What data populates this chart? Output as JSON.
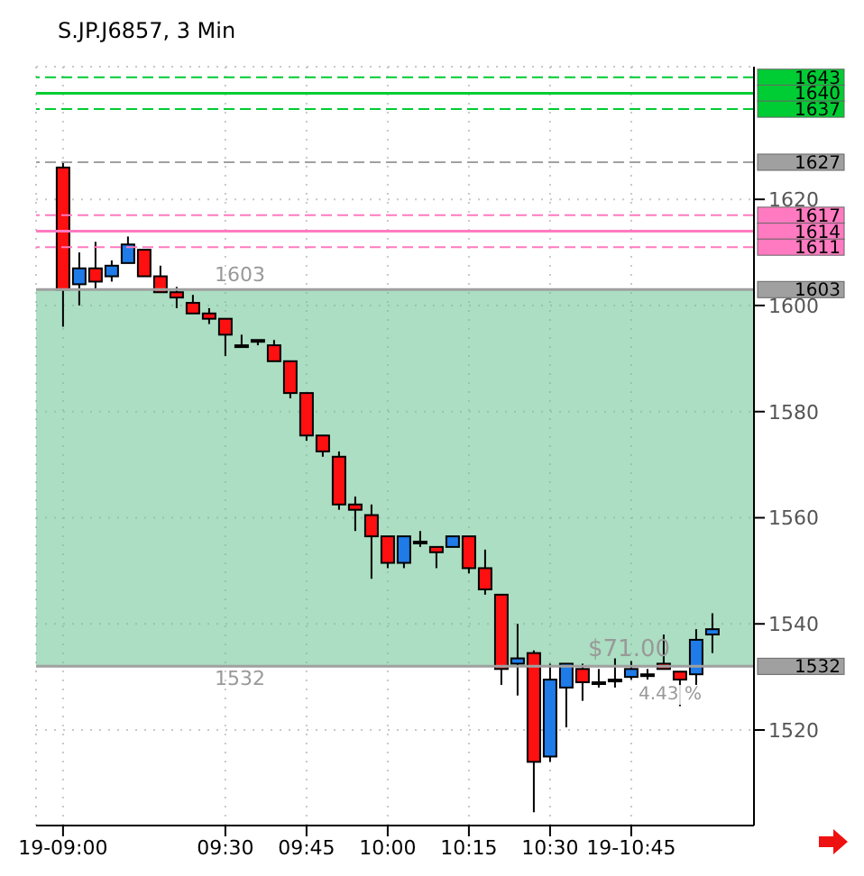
{
  "chart_data": {
    "type": "candlestick",
    "title": "S.JP.J6857, 3 Min",
    "x": [
      9,
      9.05,
      9.1,
      9.15,
      9.2,
      9.25,
      9.3,
      9.35,
      9.4,
      9.45,
      9.5,
      9.55,
      9.6,
      9.65,
      9.7,
      9.75,
      9.8,
      9.85,
      9.9,
      9.95,
      10,
      10.05,
      10.1,
      10.15,
      10.2,
      10.25,
      10.3,
      10.35,
      10.4,
      10.45,
      10.5,
      10.55,
      10.6,
      10.65,
      10.7,
      10.75,
      10.8,
      10.85,
      10.9,
      10.95,
      11
    ],
    "ohlc": [
      [
        1626,
        1627,
        1596,
        1603
      ],
      [
        1604,
        1610,
        1600,
        1607
      ],
      [
        1607,
        1612,
        1603,
        1604.5
      ],
      [
        1605.5,
        1608.5,
        1604.5,
        1607.5
      ],
      [
        1608,
        1613,
        1608,
        1611.5
      ],
      [
        1610.5,
        1610.5,
        1605.5,
        1605.5
      ],
      [
        1605.5,
        1607.5,
        1602.5,
        1602.5
      ],
      [
        1602.5,
        1603.5,
        1599.5,
        1601.5
      ],
      [
        1600.5,
        1602,
        1598.5,
        1598.5
      ],
      [
        1598.5,
        1599.5,
        1596.5,
        1597.5
      ],
      [
        1597.5,
        1597.5,
        1590.5,
        1594.5
      ],
      [
        1592.5,
        1594.5,
        1592.5,
        1592.5
      ],
      [
        1593.5,
        1593.5,
        1592.5,
        1593.5
      ],
      [
        1592.5,
        1593.5,
        1589.5,
        1589.5
      ],
      [
        1589.5,
        1589.5,
        1582.5,
        1583.5
      ],
      [
        1583.5,
        1583.5,
        1574.5,
        1575.5
      ],
      [
        1575.5,
        1575.5,
        1571.5,
        1572.5
      ],
      [
        1571.5,
        1572.5,
        1561.5,
        1562.5
      ],
      [
        1562.5,
        1564,
        1557.5,
        1561.5
      ],
      [
        1560.5,
        1562.5,
        1548.5,
        1556.5
      ],
      [
        1556.5,
        1556.5,
        1550.5,
        1551.5
      ],
      [
        1551.5,
        1556.5,
        1550.5,
        1556.5
      ],
      [
        1555.5,
        1557.5,
        1554.5,
        1555.5
      ],
      [
        1554.5,
        1554.5,
        1550.5,
        1553.5
      ],
      [
        1554.5,
        1556.5,
        1554.5,
        1556.5
      ],
      [
        1556.5,
        1556.5,
        1549.5,
        1550.5
      ],
      [
        1550.5,
        1554,
        1545.5,
        1546.5
      ],
      [
        1545.5,
        1545.5,
        1528.5,
        1531.5
      ],
      [
        1532.5,
        1540,
        1526.5,
        1533.5
      ],
      [
        1534.5,
        1535,
        1504.5,
        1514
      ],
      [
        1515,
        1532.5,
        1514,
        1529.5
      ],
      [
        1528,
        1532.5,
        1520.5,
        1532.5
      ],
      [
        1531.5,
        1532.5,
        1525.5,
        1529
      ],
      [
        1529,
        1531.5,
        1528,
        1529
      ],
      [
        1529.5,
        1533.5,
        1528,
        1529.5
      ],
      [
        1530,
        1533,
        1529.5,
        1531.5
      ],
      [
        1530.5,
        1531.5,
        1529.5,
        1530.5
      ],
      [
        1532.5,
        1538,
        1531.5,
        1531.5
      ],
      [
        1531,
        1531,
        1524.5,
        1529.5
      ],
      [
        1530.5,
        1539,
        1528.5,
        1537
      ],
      [
        1538,
        1542,
        1534.5,
        1539
      ]
    ],
    "xlim": [
      8.917,
      11.128
    ],
    "ylim": [
      1502,
      1645
    ],
    "xticks": [
      {
        "value": 9,
        "label": "19-09:00"
      },
      {
        "value": 9.5,
        "label": "09:30"
      },
      {
        "value": 9.75,
        "label": "09:45"
      },
      {
        "value": 10,
        "label": "10:00"
      },
      {
        "value": 10.25,
        "label": "10:15"
      },
      {
        "value": 10.5,
        "label": "10:30"
      },
      {
        "value": 10.75,
        "label": "19-10:45"
      }
    ],
    "yticks": [
      1520,
      1540,
      1560,
      1580,
      1600,
      1620
    ],
    "grid": true,
    "ref_lines": [
      {
        "axis": "y",
        "value": 1643,
        "label": "1643",
        "color": "#00cc33",
        "line_style": "dashed"
      },
      {
        "axis": "y",
        "value": 1640,
        "label": "1640",
        "color": "#00cc33",
        "line_style": "solid"
      },
      {
        "axis": "y",
        "value": 1637,
        "label": "1637",
        "color": "#00cc33",
        "line_style": "dashed"
      },
      {
        "axis": "y",
        "value": 1627,
        "label": "1627",
        "color": "#a0a0a0",
        "line_style": "dashed"
      },
      {
        "axis": "y",
        "value": 1617,
        "label": "1617",
        "color": "#ff7ac0",
        "line_style": "dashed"
      },
      {
        "axis": "y",
        "value": 1614,
        "label": "1614",
        "color": "#ff7ac0",
        "line_style": "solid"
      },
      {
        "axis": "y",
        "value": 1611,
        "label": "1611",
        "color": "#ff7ac0",
        "line_style": "dashed"
      },
      {
        "axis": "y",
        "value": 1603,
        "label": "1603",
        "color": "#a0a0a0",
        "line_style": "solid"
      },
      {
        "axis": "y",
        "value": 1532,
        "label": "1532",
        "color": "#a0a0a0",
        "line_style": "solid"
      }
    ],
    "bands": [
      {
        "axis": "y",
        "from": 1532,
        "to": 1603,
        "color": "#66c28f"
      }
    ],
    "annotations": [
      "1603",
      "1532",
      "$71.00",
      "4.43 %"
    ]
  }
}
